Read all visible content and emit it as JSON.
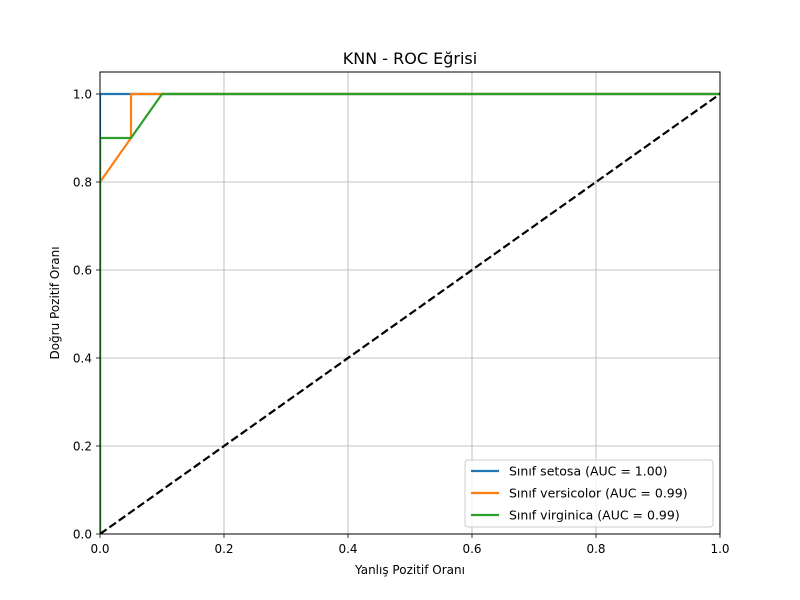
{
  "chart_data": {
    "type": "line",
    "title": "KNN - ROC Eğrisi",
    "xlabel": "Yanlış Pozitif Oranı",
    "ylabel": "Doğru Pozitif Oranı",
    "xlim": [
      0.0,
      1.0
    ],
    "ylim": [
      0.0,
      1.05
    ],
    "xticks": [
      "0.0",
      "0.2",
      "0.4",
      "0.6",
      "0.8",
      "1.0"
    ],
    "yticks": [
      "0.0",
      "0.2",
      "0.4",
      "0.6",
      "0.8",
      "1.0"
    ],
    "grid": true,
    "legend_position": "bottom-right",
    "series": [
      {
        "name": "Sınıf setosa (AUC = 1.00)",
        "color": "#1f77b4",
        "x": [
          0.0,
          0.0,
          0.05,
          1.0
        ],
        "y": [
          0.0,
          1.0,
          1.0,
          1.0
        ]
      },
      {
        "name": "Sınıf versicolor (AUC = 0.99)",
        "color": "#ff7f0e",
        "x": [
          0.0,
          0.0,
          0.05,
          0.05,
          1.0
        ],
        "y": [
          0.0,
          0.8,
          0.9,
          1.0,
          1.0
        ]
      },
      {
        "name": "Sınıf virginica (AUC = 0.99)",
        "color": "#2ca02c",
        "x": [
          0.0,
          0.0,
          0.05,
          0.1,
          1.0
        ],
        "y": [
          0.0,
          0.9,
          0.9,
          1.0,
          1.0
        ]
      }
    ],
    "reference_line": {
      "x": [
        0.0,
        1.0
      ],
      "y": [
        0.0,
        1.0
      ],
      "color": "#000000",
      "style": "dashed"
    }
  }
}
